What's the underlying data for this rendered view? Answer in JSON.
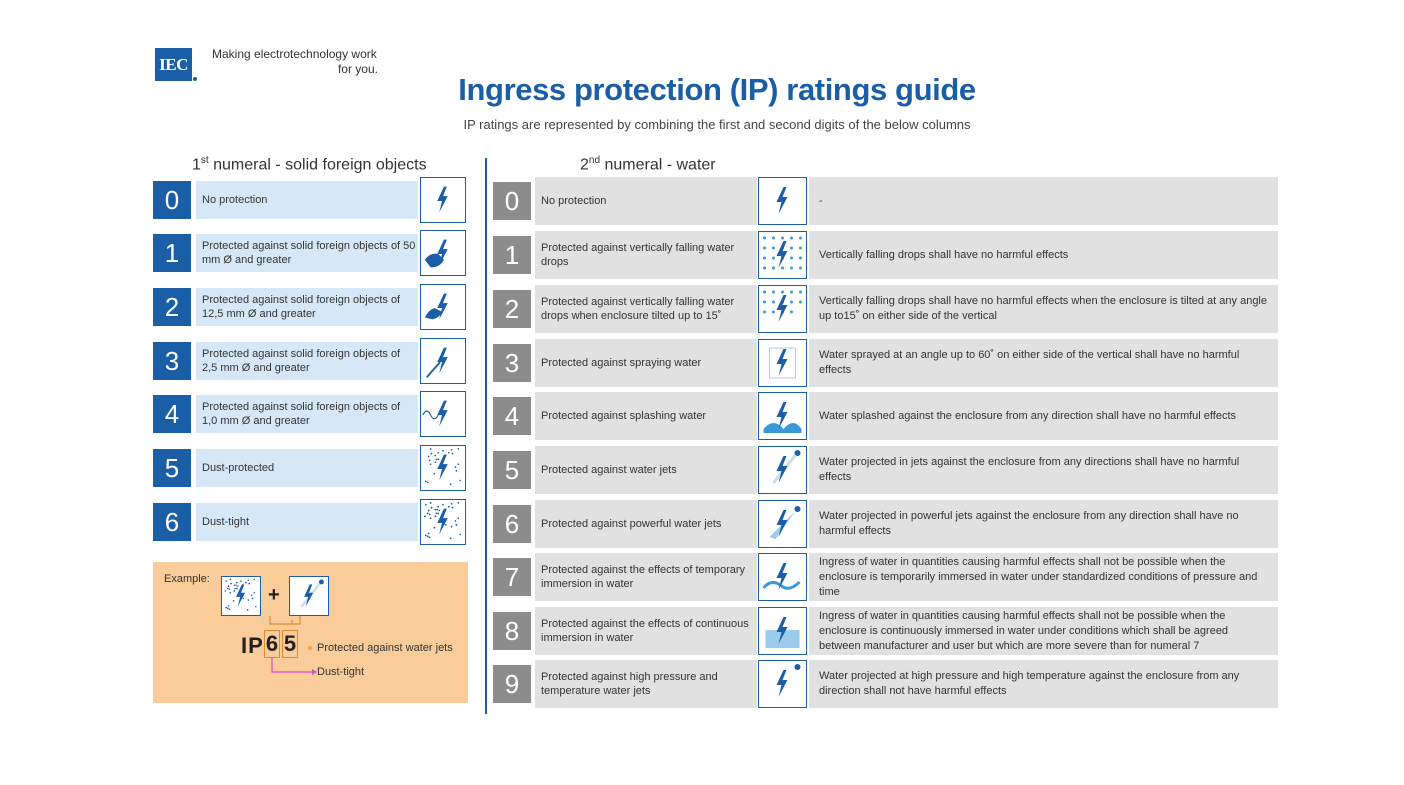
{
  "header": {
    "logo_text": "IEC",
    "tagline_line1": "Making  electrotechnology work",
    "tagline_line2": "for you.",
    "title": "Ingress protection (IP) ratings guide",
    "subtitle": "IP ratings are represented by combining the first and second digits of the below columns"
  },
  "colors": {
    "accent": "#1a5ea8",
    "light_blue": "#d6e8f7",
    "grey_num": "#8c8c8c",
    "grey_cell": "#e1e1e1",
    "example_bg": "#f9cc99"
  },
  "solids": {
    "heading_prefix": "1",
    "heading_sup": "st",
    "heading_rest": " numeral - solid foreign objects",
    "rows": [
      {
        "digit": "0",
        "label": "No protection",
        "icon": "bolt-icon"
      },
      {
        "digit": "1",
        "label": "Protected against solid foreign objects of 50 mm Ø and greater",
        "icon": "hand-icon"
      },
      {
        "digit": "2",
        "label": "Protected against solid foreign objects of 12,5 mm Ø and greater",
        "icon": "finger-icon"
      },
      {
        "digit": "3",
        "label": "Protected against solid foreign objects of 2,5 mm Ø and greater",
        "icon": "tool-icon"
      },
      {
        "digit": "4",
        "label": "Protected against solid foreign objects of 1,0 mm Ø and greater",
        "icon": "wire-icon"
      },
      {
        "digit": "5",
        "label": "Dust-protected",
        "icon": "dust-icon"
      },
      {
        "digit": "6",
        "label": "Dust-tight",
        "icon": "dust-dense-icon"
      }
    ]
  },
  "water": {
    "heading_prefix": "2",
    "heading_sup": "nd",
    "heading_rest": " numeral - water",
    "rows": [
      {
        "digit": "0",
        "label": "No protection",
        "icon": "bolt-icon",
        "description": "-"
      },
      {
        "digit": "1",
        "label": "Protected against vertically falling water drops",
        "icon": "drops-icon",
        "description": "Vertically falling drops shall have no harmful effects"
      },
      {
        "digit": "2",
        "label": "Protected against vertically falling water drops when enclosure tilted up to 15˚",
        "icon": "drops-tilted-icon",
        "description": "Vertically falling drops shall have no harmful effects when the enclosure is tilted at any angle up to15˚ on either side of the vertical"
      },
      {
        "digit": "3",
        "label": "Protected against spraying water",
        "icon": "spray-icon",
        "description": "Water sprayed at an angle up to 60˚ on either side of the vertical shall have no harmful effects"
      },
      {
        "digit": "4",
        "label": "Protected against splashing water",
        "icon": "splash-icon",
        "description": "Water splashed against the enclosure from any direction shall have no harmful effects"
      },
      {
        "digit": "5",
        "label": "Protected against water jets",
        "icon": "jet-icon",
        "description": "Water projected in jets against the enclosure from any directions shall have no harmful effects"
      },
      {
        "digit": "6",
        "label": "Protected against powerful water jets",
        "icon": "powerful-jet-icon",
        "description": "Water projected in powerful jets against the enclosure from any direction shall have no harmful effects"
      },
      {
        "digit": "7",
        "label": "Protected against the effects of temporary immersion in water",
        "icon": "wave-icon",
        "description": "Ingress of water in quantities causing harmful effects shall not be possible when the enclosure is temporarily immersed in water under standardized conditions of pressure and time"
      },
      {
        "digit": "8",
        "label": "Protected against the effects of continuous immersion in water",
        "icon": "immersion-icon",
        "description": "Ingress of water in quantities causing harmful effects shall not be possible when the enclosure is continuously immersed in water under conditions which shall be agreed between manufacturer and user but which are more severe than for numeral 7"
      },
      {
        "digit": "9",
        "label": "Protected against high pressure and temperature water jets",
        "icon": "hot-jet-icon",
        "description": "Water projected at high pressure and high temperature against the enclosure from any direction shall not have harmful effects"
      }
    ]
  },
  "example": {
    "label": "Example:",
    "plus": "+",
    "ip": "IP",
    "first_digit": "6",
    "second_digit": "5",
    "note_second": "Protected against water jets",
    "note_first": "Dust-tight"
  }
}
